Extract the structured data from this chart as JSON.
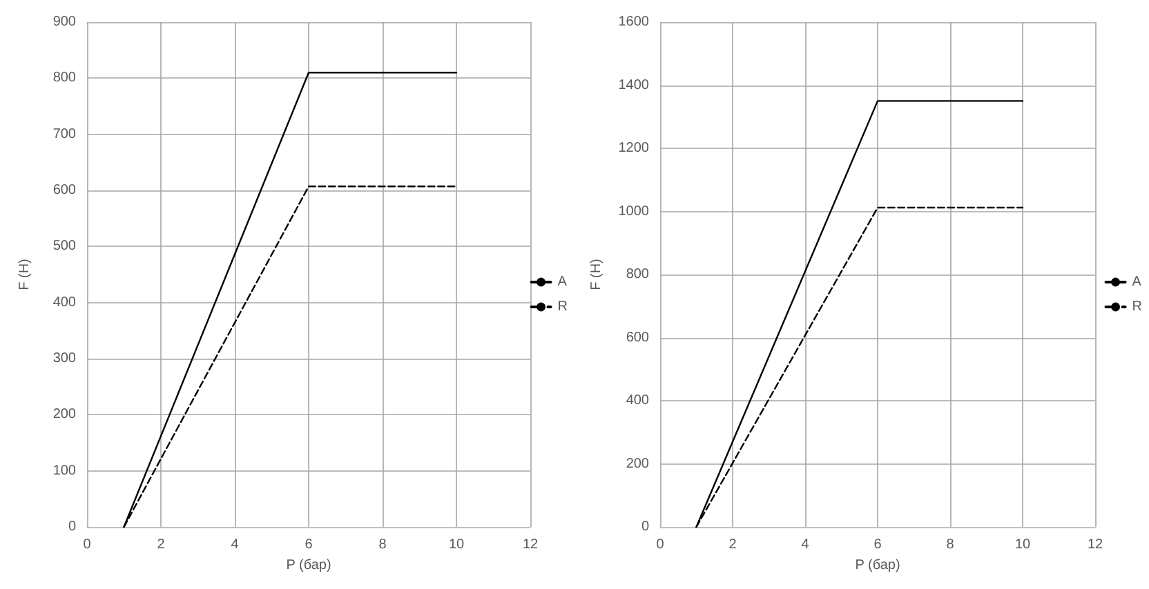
{
  "chart_data": [
    {
      "type": "line",
      "xlabel": "P (бар)",
      "ylabel": "F (H)",
      "xlim": [
        0,
        12
      ],
      "xticks": [
        0,
        2,
        4,
        6,
        8,
        10,
        12
      ],
      "ylim": [
        0,
        900
      ],
      "yticks": [
        0,
        100,
        200,
        300,
        400,
        500,
        600,
        700,
        800,
        900
      ],
      "grid": true,
      "legend": "right",
      "marker": "none",
      "series": [
        {
          "name": "A",
          "color": "#000000",
          "line_style": "solid",
          "x": [
            1,
            6,
            10
          ],
          "values": [
            0,
            810,
            810
          ]
        },
        {
          "name": "R",
          "color": "#000000",
          "line_style": "dashed",
          "x": [
            1,
            6,
            10
          ],
          "values": [
            0,
            607,
            607
          ]
        }
      ]
    },
    {
      "type": "line",
      "xlabel": "P (бар)",
      "ylabel": "F (H)",
      "xlim": [
        0,
        12
      ],
      "xticks": [
        0,
        2,
        4,
        6,
        8,
        10,
        12
      ],
      "ylim": [
        0,
        1600
      ],
      "yticks": [
        0,
        200,
        400,
        600,
        800,
        1000,
        1200,
        1400,
        1600
      ],
      "grid": true,
      "legend": "right",
      "marker": "none",
      "series": [
        {
          "name": "A",
          "color": "#000000",
          "line_style": "solid",
          "x": [
            1,
            6,
            10
          ],
          "values": [
            0,
            1350,
            1350
          ]
        },
        {
          "name": "R",
          "color": "#000000",
          "line_style": "dashed",
          "x": [
            1,
            6,
            10
          ],
          "values": [
            0,
            1012,
            1012
          ]
        }
      ]
    }
  ]
}
